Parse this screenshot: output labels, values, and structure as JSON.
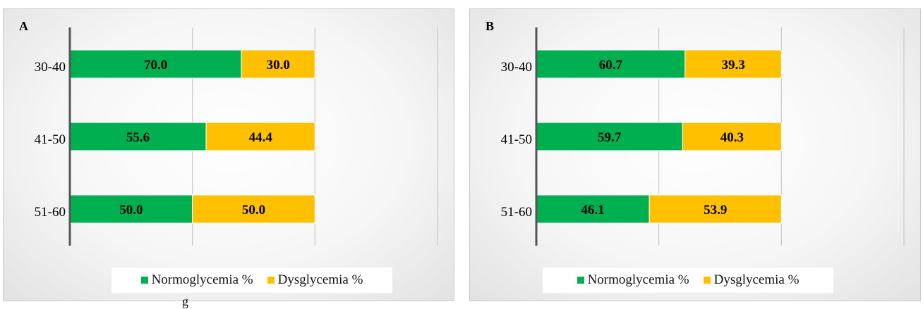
{
  "colors": {
    "normoglycemia": "#00b050",
    "dysglycemia": "#ffc000",
    "axis": "#555555",
    "grid": "#c8c8c8"
  },
  "stray_text": "g",
  "chart_data": [
    {
      "type": "bar",
      "stacked": true,
      "orientation": "horizontal",
      "panel_label": "A",
      "categories": [
        "30-40",
        "41-50",
        "51-60"
      ],
      "series": [
        {
          "name": "Normoglycemia %",
          "values": [
            70.0,
            55.6,
            50.0
          ]
        },
        {
          "name": "Dysglycemia %",
          "values": [
            30.0,
            44.4,
            50.0
          ]
        }
      ],
      "data_labels": [
        [
          "70.0",
          "55.6",
          "50.0"
        ],
        [
          "30.0",
          "44.4",
          "50.0"
        ]
      ],
      "xlim": [
        0,
        150
      ],
      "grid": true,
      "legend": "bottom"
    },
    {
      "type": "bar",
      "stacked": true,
      "orientation": "horizontal",
      "panel_label": "B",
      "categories": [
        "30-40",
        "41-50",
        "51-60"
      ],
      "series": [
        {
          "name": "Normoglycemia %",
          "values": [
            60.7,
            59.7,
            46.1
          ]
        },
        {
          "name": "Dysglycemia %",
          "values": [
            39.3,
            40.3,
            53.9
          ]
        }
      ],
      "data_labels": [
        [
          "60.7",
          "59.7",
          "46.1"
        ],
        [
          "39.3",
          "40.3",
          "53.9"
        ]
      ],
      "xlim": [
        0,
        150
      ],
      "grid": true,
      "legend": "bottom"
    }
  ]
}
